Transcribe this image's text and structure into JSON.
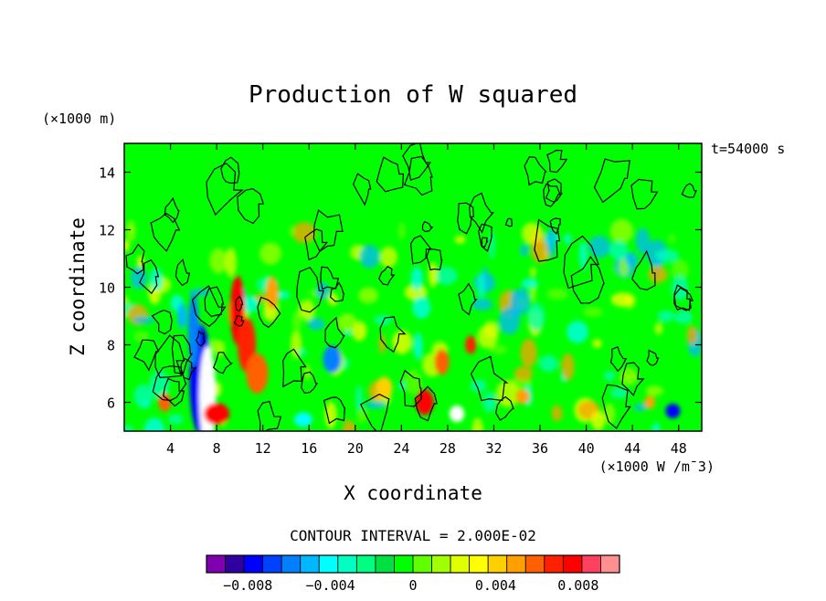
{
  "chart_data": {
    "type": "heatmap",
    "title": "Production of W squared",
    "xlabel": "X coordinate",
    "ylabel": "Z coordinate",
    "x_units": "(×1000 W /m¯3)",
    "y_units": "(×1000 m)",
    "time_label": "t=54000 s",
    "contour_interval_label": "CONTOUR INTERVAL = 2.000E-02",
    "xlim": [
      0,
      50
    ],
    "ylim": [
      5,
      15
    ],
    "x_ticks": [
      4,
      8,
      12,
      16,
      20,
      24,
      28,
      32,
      36,
      40,
      44,
      48
    ],
    "y_ticks": [
      6,
      8,
      10,
      12,
      14
    ],
    "colorbar": {
      "range": [
        -0.01,
        0.01
      ],
      "colors": [
        "#8000b0",
        "#3000a0",
        "#0000ff",
        "#0040ff",
        "#0080ff",
        "#00b8ff",
        "#00ffff",
        "#00ffc0",
        "#00ff80",
        "#00e040",
        "#00ff00",
        "#60ff00",
        "#a0ff00",
        "#e0ff00",
        "#ffff00",
        "#ffd000",
        "#ffa000",
        "#ff6000",
        "#ff2000",
        "#ff0000",
        "#ff4060",
        "#ff9090"
      ],
      "tick_values": [
        -0.008,
        -0.004,
        0,
        0.004,
        0.008
      ],
      "tick_labels": [
        "−0.008",
        "−0.004",
        "0",
        "0.004",
        "0.008"
      ]
    },
    "field_description_colors": {
      "background": "#00ff00",
      "positive": "#ff0000",
      "negative": "#0000ff"
    }
  }
}
